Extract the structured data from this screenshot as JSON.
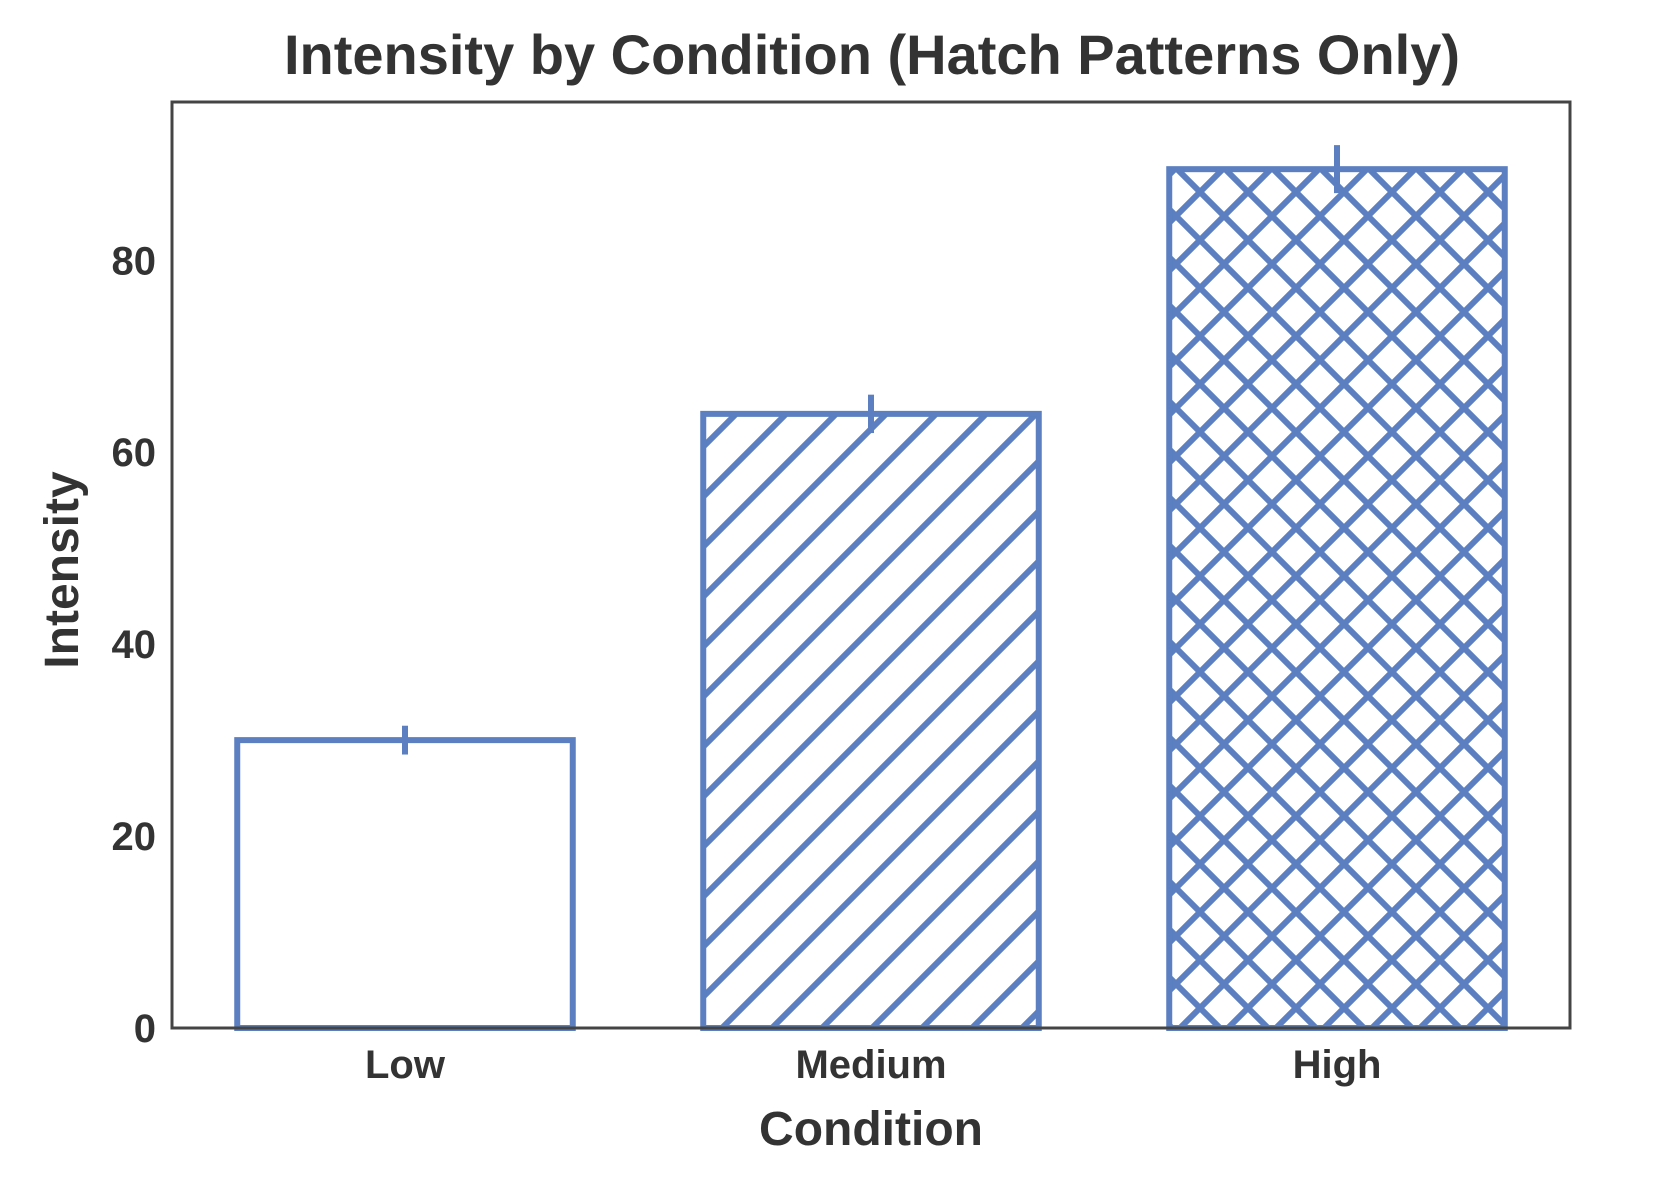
{
  "chart_data": {
    "type": "bar",
    "title": "Intensity by Condition (Hatch Patterns Only)",
    "xlabel": "Condition",
    "ylabel": "Intensity",
    "categories": [
      "Low",
      "Medium",
      "High"
    ],
    "values": [
      30,
      64,
      89.5
    ],
    "errors": [
      1.5,
      2,
      2.5
    ],
    "hatch": [
      "none",
      "diagonal",
      "crosshatch"
    ],
    "ylim": [
      0,
      96.5
    ],
    "yticks": [
      0,
      20,
      40,
      60,
      80
    ],
    "grid": false,
    "legend": "none",
    "colors": {
      "bar_edge": "#5b7fc0",
      "axis": "#444444",
      "text": "#333333",
      "background": "#ffffff"
    }
  }
}
